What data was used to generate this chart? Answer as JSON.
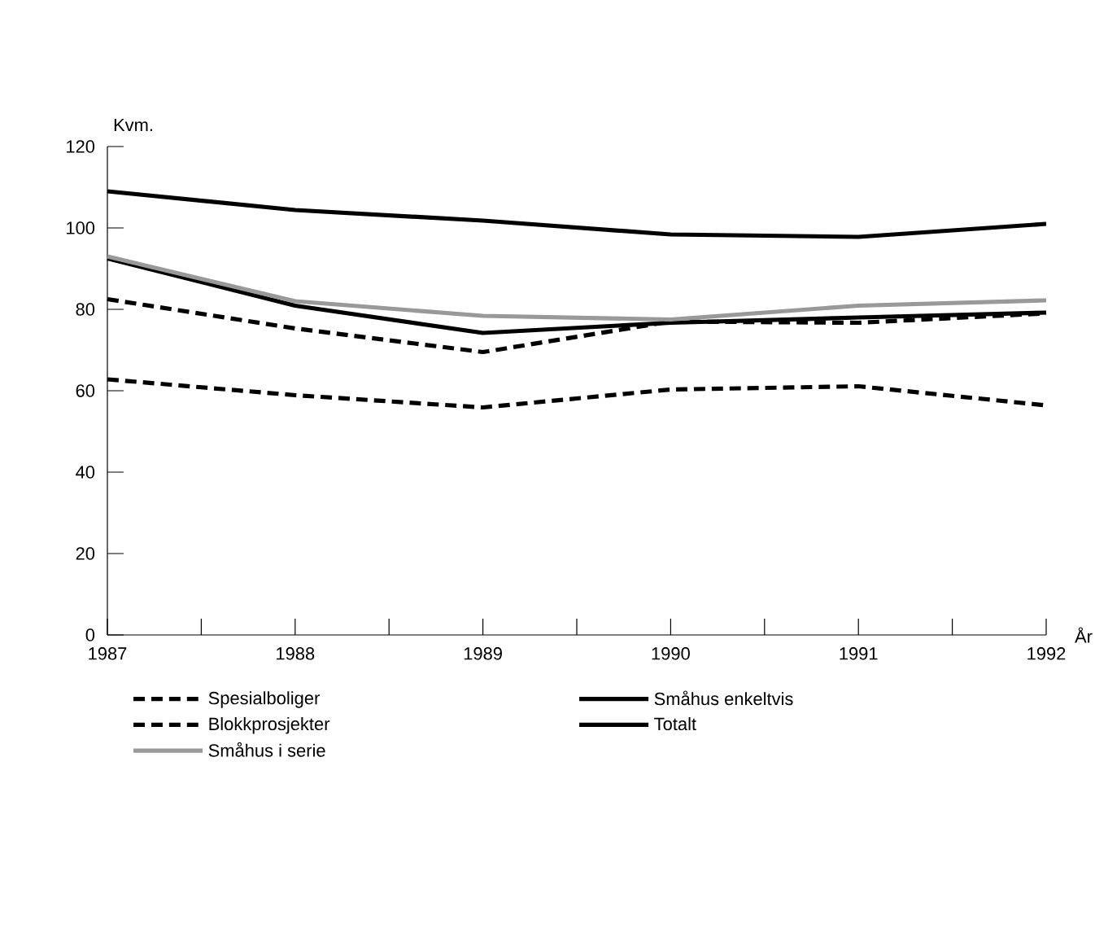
{
  "chart_data": {
    "type": "line",
    "xlabel": "År",
    "ylabel": "Kvm.",
    "x": [
      1987,
      1988,
      1989,
      1990,
      1991,
      1992
    ],
    "xlim": [
      1987,
      1992
    ],
    "ylim": [
      0,
      120
    ],
    "xticks": [
      1987,
      {
        "value": 1987.5,
        "label": null
      },
      1988,
      {
        "value": 1988.5,
        "label": null
      },
      1989,
      {
        "value": 1989.5,
        "label": null
      },
      1990,
      {
        "value": 1990.5,
        "label": null
      },
      1991,
      {
        "value": 1991.5,
        "label": null
      },
      1992
    ],
    "yticks": [
      0,
      20,
      40,
      60,
      80,
      100,
      120
    ],
    "legend": "bottom",
    "series": [
      {
        "name": "Spesialboliger",
        "color": "#000000",
        "line_style": "dashed",
        "values": [
          62.8,
          58.9,
          55.9,
          60.3,
          61.1,
          56.4
        ]
      },
      {
        "name": "Blokkprosjekter",
        "color": "#000000",
        "line_style": "dashed",
        "values": [
          82.5,
          75.3,
          69.5,
          77,
          76.7,
          79
        ]
      },
      {
        "name": "Småhus i serie",
        "color": "#999999",
        "line_style": "solid",
        "values": [
          93,
          82,
          78.4,
          77.5,
          80.9,
          82.2
        ]
      },
      {
        "name": "Småhus enkeltvis",
        "color": "#000000",
        "line_style": "solid",
        "values": [
          92.5,
          80.9,
          74.2,
          76.7,
          78,
          79.2
        ]
      },
      {
        "name": "Totalt",
        "color": "#000000",
        "line_style": "solid",
        "values": [
          109,
          104.4,
          101.8,
          98.4,
          97.8,
          101
        ]
      }
    ]
  }
}
